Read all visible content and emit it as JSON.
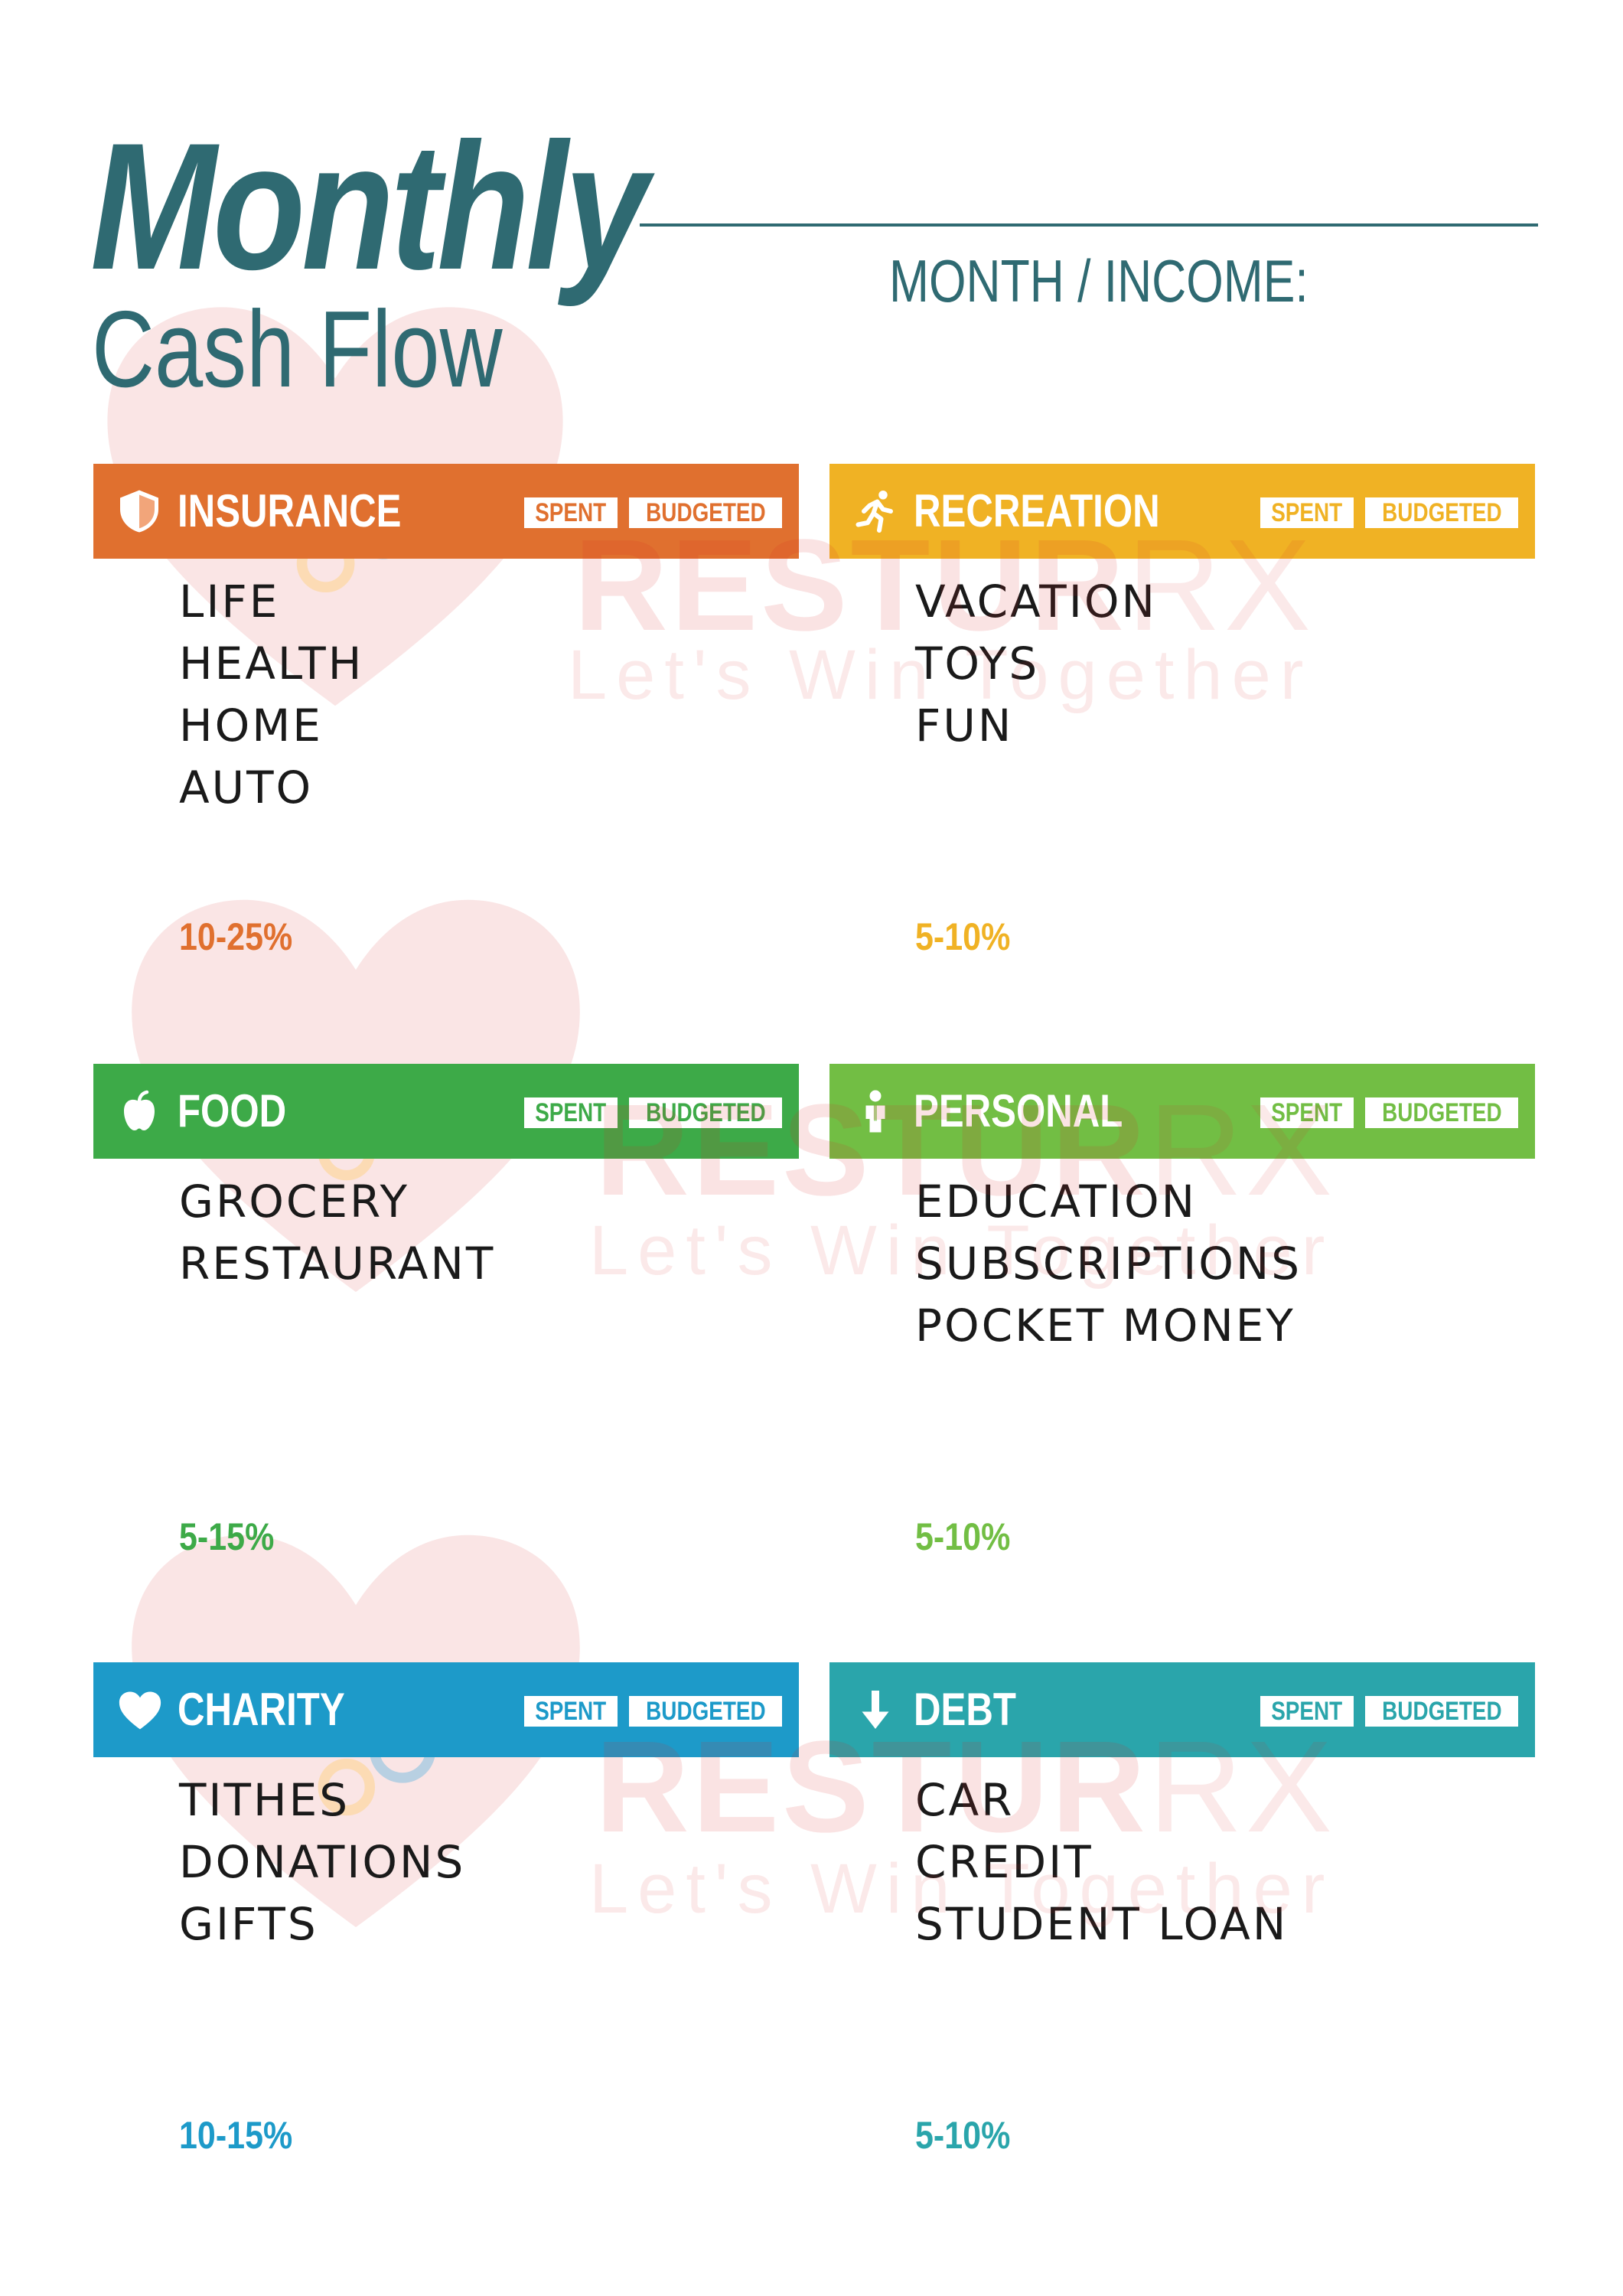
{
  "header": {
    "title": "Monthly",
    "subtitle": "Cash Flow",
    "month_income_label": "MONTH / INCOME:"
  },
  "watermark": {
    "brand_bold": "RESTUR",
    "brand_light": "RX",
    "tagline": "Let's Win Together"
  },
  "common": {
    "spent_label": "SPENT",
    "budgeted_label": "BUDGETED"
  },
  "colors": {
    "title": "#2f6a72",
    "insurance": "#e0702f",
    "recreation": "#f0b224",
    "food": "#3daa48",
    "personal": "#72be44",
    "charity": "#1d9ac9",
    "debt": "#2aa5ab"
  },
  "sections": {
    "insurance": {
      "name": "INSURANCE",
      "icon": "shield-icon",
      "items": [
        "LIFE",
        "HEALTH",
        "HOME",
        "AUTO"
      ],
      "percent": "10-25%"
    },
    "recreation": {
      "name": "RECREATION",
      "icon": "running-person-icon",
      "items": [
        "VACATION",
        "TOYS",
        "FUN"
      ],
      "percent": "5-10%"
    },
    "food": {
      "name": "FOOD",
      "icon": "apple-icon",
      "items": [
        "GROCERY",
        "RESTAURANT"
      ],
      "percent": "5-15%"
    },
    "personal": {
      "name": "PERSONAL",
      "icon": "person-icon",
      "items": [
        "EDUCATION",
        "SUBSCRIPTIONS",
        "POCKET MONEY"
      ],
      "percent": "5-10%"
    },
    "charity": {
      "name": "CHARITY",
      "icon": "heart-icon",
      "items": [
        "TITHES",
        "DONATIONS",
        "GIFTS"
      ],
      "percent": "10-15%"
    },
    "debt": {
      "name": "DEBT",
      "icon": "down-arrow-icon",
      "items": [
        "CAR",
        "CREDIT",
        "STUDENT LOAN"
      ],
      "percent": "5-10%"
    }
  }
}
